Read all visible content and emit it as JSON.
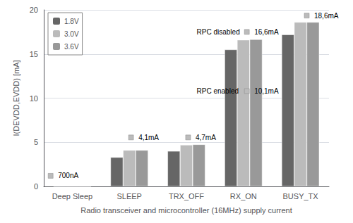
{
  "chart_data": {
    "type": "bar",
    "xlabel": "Radio transceiver and microcontroller (16MHz) supply current",
    "ylabel": "I(DEVDD,EVDD) [mA]",
    "categories": [
      "Deep Sleep",
      "SLEEP",
      "TRX_OFF",
      "RX_ON",
      "BUSY_TX"
    ],
    "series": [
      {
        "name": "1.8V",
        "color": "#666666",
        "values": [
          0.0007,
          3.3,
          4.0,
          15.5,
          17.2
        ]
      },
      {
        "name": "3.0V",
        "color": "#bbbbbb",
        "values": [
          0.0,
          4.1,
          4.7,
          16.6,
          18.6
        ]
      },
      {
        "name": "3.6V",
        "color": "#999999",
        "values": [
          0.0,
          4.1,
          4.75,
          16.65,
          18.6
        ]
      }
    ],
    "ylim": [
      0,
      20
    ],
    "yticks": [
      0,
      5,
      10,
      15,
      20
    ],
    "grid": true,
    "legend": "upper left",
    "annotations": [
      "700nA",
      "4,1mA",
      "4,7mA",
      "RPC disabled",
      "16,6mA",
      "RPC enabled",
      "10,1mA",
      "18,6mA"
    ]
  }
}
